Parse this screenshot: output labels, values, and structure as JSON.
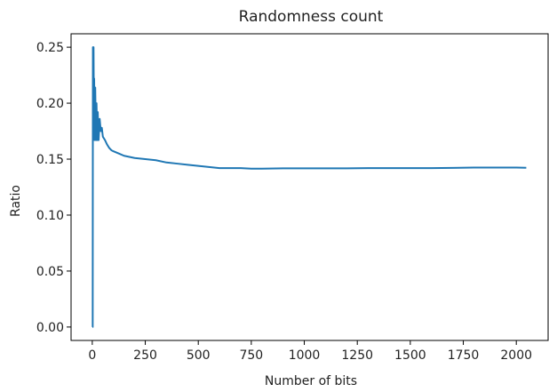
{
  "chart_data": {
    "type": "line",
    "title": "Randomness count",
    "xlabel": "Number of bits",
    "ylabel": "Ratio",
    "xlim": [
      -100,
      2150
    ],
    "ylim": [
      -0.012,
      0.262
    ],
    "xticks": [
      0,
      250,
      500,
      750,
      1000,
      1250,
      1500,
      1750,
      2000
    ],
    "yticks": [
      0.0,
      0.05,
      0.1,
      0.15,
      0.2,
      0.25
    ],
    "xtick_labels": [
      "0",
      "250",
      "500",
      "750",
      "1000",
      "1250",
      "1500",
      "1750",
      "2000"
    ],
    "ytick_labels": [
      "0.00",
      "0.05",
      "0.10",
      "0.15",
      "0.20",
      "0.25"
    ],
    "grid": false,
    "color": "#1f77b4",
    "series": [
      {
        "x": [
          1,
          2,
          3,
          4,
          5,
          6,
          7,
          8,
          9,
          10,
          12,
          14,
          16,
          18,
          20,
          22,
          24,
          26,
          28,
          30,
          35,
          40,
          45,
          50,
          60,
          70,
          80,
          90,
          100,
          125,
          150,
          175,
          200,
          250,
          300,
          350,
          400,
          450,
          500,
          550,
          600,
          650,
          700,
          750,
          800,
          900,
          1000,
          1100,
          1200,
          1300,
          1400,
          1500,
          1600,
          1700,
          1800,
          1900,
          2000,
          2047
        ],
        "y": [
          0.0,
          0.0,
          0.25,
          0.2,
          0.167,
          0.25,
          0.214,
          0.188,
          0.222,
          0.2,
          0.167,
          0.214,
          0.188,
          0.167,
          0.2,
          0.182,
          0.167,
          0.192,
          0.179,
          0.167,
          0.186,
          0.175,
          0.178,
          0.17,
          0.167,
          0.163,
          0.16,
          0.158,
          0.157,
          0.155,
          0.153,
          0.152,
          0.151,
          0.15,
          0.149,
          0.147,
          0.146,
          0.145,
          0.144,
          0.143,
          0.142,
          0.142,
          0.142,
          0.1415,
          0.1415,
          0.1418,
          0.1418,
          0.1418,
          0.1418,
          0.142,
          0.142,
          0.142,
          0.142,
          0.1422,
          0.1425,
          0.1425,
          0.1425,
          0.1423
        ]
      }
    ]
  }
}
